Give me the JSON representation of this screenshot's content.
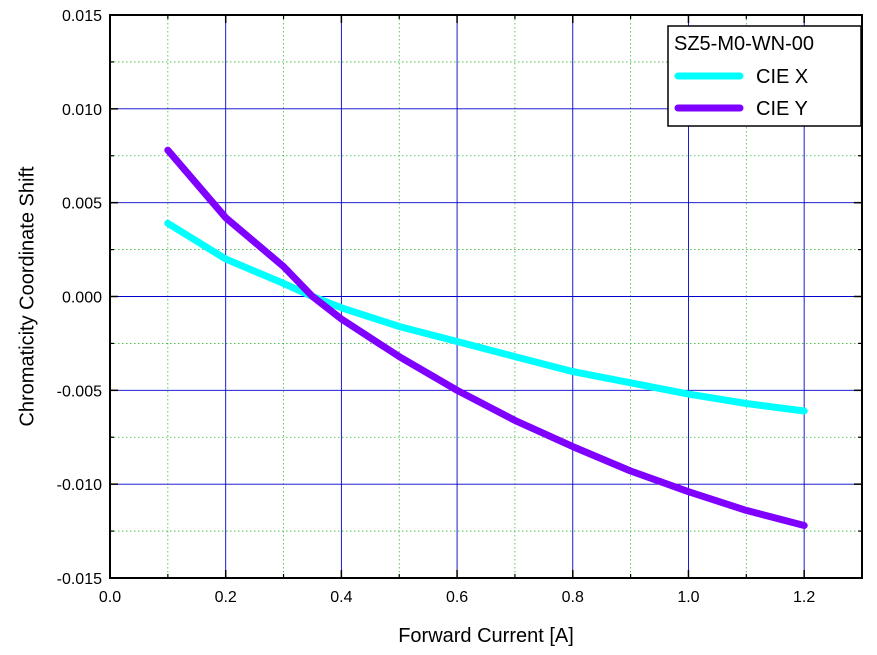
{
  "chart_data": {
    "type": "line",
    "title": "",
    "xlabel": "Forward Current [A]",
    "ylabel": "Chromaticity Coordinate Shift",
    "xlim": [
      0.0,
      1.3
    ],
    "ylim": [
      -0.015,
      0.015
    ],
    "x_major_ticks": [
      0.0,
      0.2,
      0.4,
      0.6,
      0.8,
      1.0,
      1.2
    ],
    "x_tick_labels": [
      "0.0",
      "0.2",
      "0.4",
      "0.6",
      "0.8",
      "1.0",
      "1.2"
    ],
    "y_major_ticks": [
      -0.015,
      -0.01,
      -0.005,
      0.0,
      0.005,
      0.01,
      0.015
    ],
    "y_tick_labels": [
      "-0.015",
      "-0.010",
      "-0.005",
      "0.000",
      "0.005",
      "0.010",
      "0.015"
    ],
    "x_minor_ticks": [
      0.1,
      0.3,
      0.5,
      0.7,
      0.9,
      1.1
    ],
    "y_minor_ticks": [
      -0.0125,
      -0.0075,
      -0.0025,
      0.0025,
      0.0075,
      0.0125
    ],
    "grid": true,
    "legend": {
      "title": "SZ5-M0-WN-00",
      "placement": "top-right"
    },
    "series": [
      {
        "name": "CIE X",
        "color": "#00ffff",
        "x": [
          0.1,
          0.2,
          0.3,
          0.35,
          0.4,
          0.5,
          0.6,
          0.7,
          0.8,
          0.9,
          1.0,
          1.1,
          1.2
        ],
        "y": [
          0.0039,
          0.002,
          0.0007,
          0.0,
          -0.0006,
          -0.0016,
          -0.0024,
          -0.0032,
          -0.004,
          -0.0046,
          -0.0052,
          -0.0057,
          -0.0061
        ]
      },
      {
        "name": "CIE Y",
        "color": "#7f00ff",
        "x": [
          0.1,
          0.2,
          0.3,
          0.35,
          0.4,
          0.5,
          0.6,
          0.7,
          0.8,
          0.9,
          1.0,
          1.1,
          1.2
        ],
        "y": [
          0.0078,
          0.0042,
          0.0016,
          0.0,
          -0.0012,
          -0.0032,
          -0.005,
          -0.0066,
          -0.008,
          -0.0093,
          -0.0104,
          -0.0114,
          -0.0122
        ]
      }
    ]
  }
}
